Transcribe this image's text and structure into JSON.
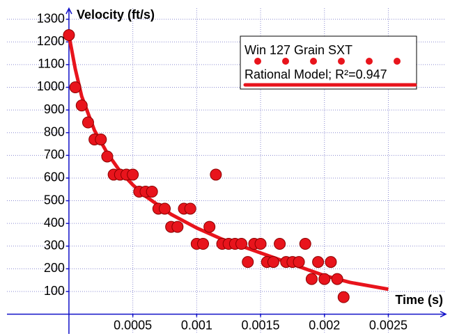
{
  "chart_data": {
    "type": "scatter",
    "y_label": "Velocity (ft/s)",
    "x_label": "Time (s)",
    "xlim": [
      -0.000485,
      0.00295
    ],
    "ylim": [
      -87,
      1348
    ],
    "xticks": [
      0.0005,
      0.001,
      0.0015,
      0.002,
      0.0025
    ],
    "yticks": [
      100,
      200,
      300,
      400,
      500,
      600,
      700,
      800,
      900,
      1000,
      1100,
      1200,
      1300
    ],
    "grid": true,
    "legend": "upper right",
    "series": [
      {
        "name": "Win 127 Grain SXT",
        "mode": "markers",
        "color": "#e8141c",
        "x": [
          0,
          5e-05,
          0.0001,
          0.00015,
          0.0002,
          0.00025,
          0.0003,
          0.00035,
          0.0004,
          0.00045,
          0.0005,
          0.00055,
          0.0006,
          0.00065,
          0.0007,
          0.00075,
          0.0008,
          0.00085,
          0.0009,
          0.00095,
          0.001,
          0.00105,
          0.0011,
          0.00115,
          0.0012,
          0.00125,
          0.0013,
          0.00135,
          0.0014,
          0.00145,
          0.0015,
          0.00155,
          0.0016,
          0.00165,
          0.0017,
          0.00175,
          0.0018,
          0.00185,
          0.0019,
          0.00195,
          0.002,
          0.00205,
          0.0021,
          0.00215
        ],
        "values": [
          1230,
          1000,
          920,
          845,
          770,
          770,
          695,
          615,
          615,
          615,
          615,
          540,
          540,
          540,
          465,
          465,
          385,
          385,
          465,
          465,
          310,
          310,
          385,
          615,
          310,
          310,
          310,
          310,
          230,
          310,
          310,
          230,
          230,
          310,
          230,
          230,
          230,
          310,
          155,
          230,
          155,
          230,
          155,
          75
        ]
      },
      {
        "name": "Rational Model; R²=0.947",
        "mode": "line",
        "color": "#e8141c",
        "x": [
          0,
          5e-05,
          0.0001,
          0.0002,
          0.0003,
          0.0004,
          0.0005,
          0.0006,
          0.0008,
          0.001,
          0.0012,
          0.0014,
          0.0016,
          0.0018,
          0.002,
          0.0022,
          0.0025
        ],
        "values": [
          1230,
          1080,
          960,
          810,
          710,
          630,
          570,
          520,
          440,
          380,
          330,
          290,
          250,
          210,
          170,
          140,
          110
        ]
      }
    ]
  }
}
